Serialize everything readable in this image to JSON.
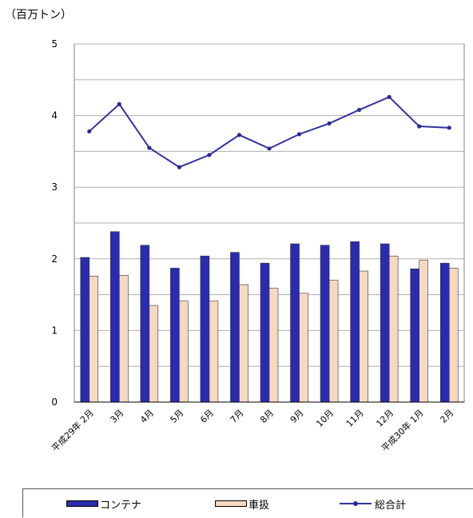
{
  "unit_label": "（百万トン）",
  "legend": {
    "container": "コンテナ",
    "vehicle": "車扱",
    "total": "総合計"
  },
  "colors": {
    "container": "#2b2bb0",
    "vehicle": "#f5d9c0",
    "total": "#3333a0",
    "grid": "#b0b0b0"
  },
  "chart_data": {
    "type": "bar",
    "categories": [
      "平成29年 2月",
      "3月",
      "4月",
      "5月",
      "6月",
      "7月",
      "8月",
      "9月",
      "10月",
      "11月",
      "12月",
      "平成30年 1月",
      "2月"
    ],
    "series": [
      {
        "name": "コンテナ",
        "type": "bar",
        "values": [
          2.02,
          2.38,
          2.19,
          1.87,
          2.04,
          2.09,
          1.94,
          2.21,
          2.19,
          2.24,
          2.21,
          1.86,
          1.94
        ]
      },
      {
        "name": "車扱",
        "type": "bar",
        "values": [
          1.76,
          1.77,
          1.35,
          1.41,
          1.41,
          1.64,
          1.59,
          1.52,
          1.7,
          1.83,
          2.04,
          1.98,
          1.87
        ]
      },
      {
        "name": "総合計",
        "type": "line",
        "values": [
          3.78,
          4.16,
          3.55,
          3.28,
          3.45,
          3.73,
          3.54,
          3.74,
          3.89,
          4.08,
          4.26,
          3.85,
          3.83
        ]
      }
    ],
    "ylim": [
      0,
      5
    ],
    "yticks": [
      "0",
      "1",
      "2",
      "3",
      "4",
      "5"
    ],
    "grid": true,
    "legend_position": "bottom"
  }
}
